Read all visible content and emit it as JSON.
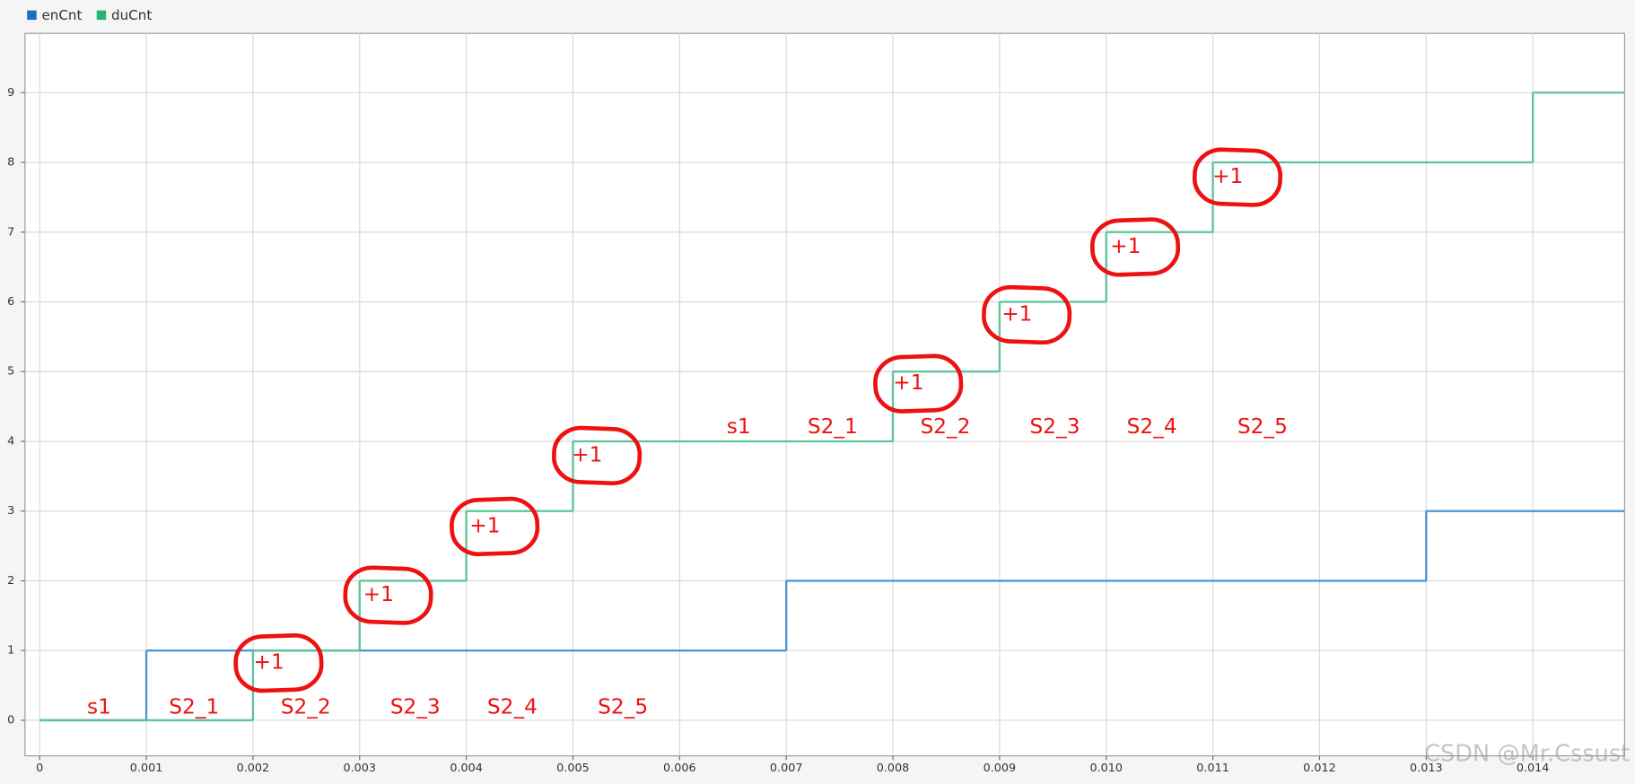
{
  "chart_data": {
    "type": "step",
    "series": [
      {
        "name": "enCnt",
        "color": "#1a6fc4",
        "line_color": "#4a94d2",
        "x": [
          0,
          0.001,
          0.007,
          0.013
        ],
        "values": [
          0,
          1,
          2,
          3
        ]
      },
      {
        "name": "duCnt",
        "color": "#22b573",
        "line_color": "#5cc49a",
        "x": [
          0,
          0.002,
          0.003,
          0.004,
          0.005,
          0.008,
          0.009,
          0.01,
          0.011,
          0.014
        ],
        "values": [
          0,
          1,
          2,
          3,
          4,
          5,
          6,
          7,
          8,
          9
        ]
      }
    ],
    "xlim": [
      -0.000137,
      0.01486
    ],
    "ylim": [
      -0.51,
      9.85
    ],
    "xticks": [
      0,
      0.001,
      0.002,
      0.003,
      0.004,
      0.005,
      0.006,
      0.007,
      0.008,
      0.009,
      {
        "value": 0.01,
        "label": "0.010"
      },
      0.011,
      0.012,
      0.013,
      0.014
    ],
    "yticks": [
      0,
      1,
      2,
      3,
      4,
      5,
      6,
      7,
      8,
      9
    ],
    "grid": true,
    "legend": "top-left",
    "annotations": {
      "labels_lower": [
        "s1",
        "S2_1",
        "S2_2",
        "S2_3",
        "S2_4",
        "S2_5"
      ],
      "labels_upper": [
        "s1",
        "S2_1",
        "S2_2",
        "S2_3",
        "S2_4",
        "S2_5"
      ],
      "increments": [
        "+1",
        "+1",
        "+1",
        "+1",
        "+1",
        "+1",
        "+1",
        "+1"
      ],
      "color": "#ee1111"
    },
    "watermark": "CSDN @Mr.Cssust"
  }
}
